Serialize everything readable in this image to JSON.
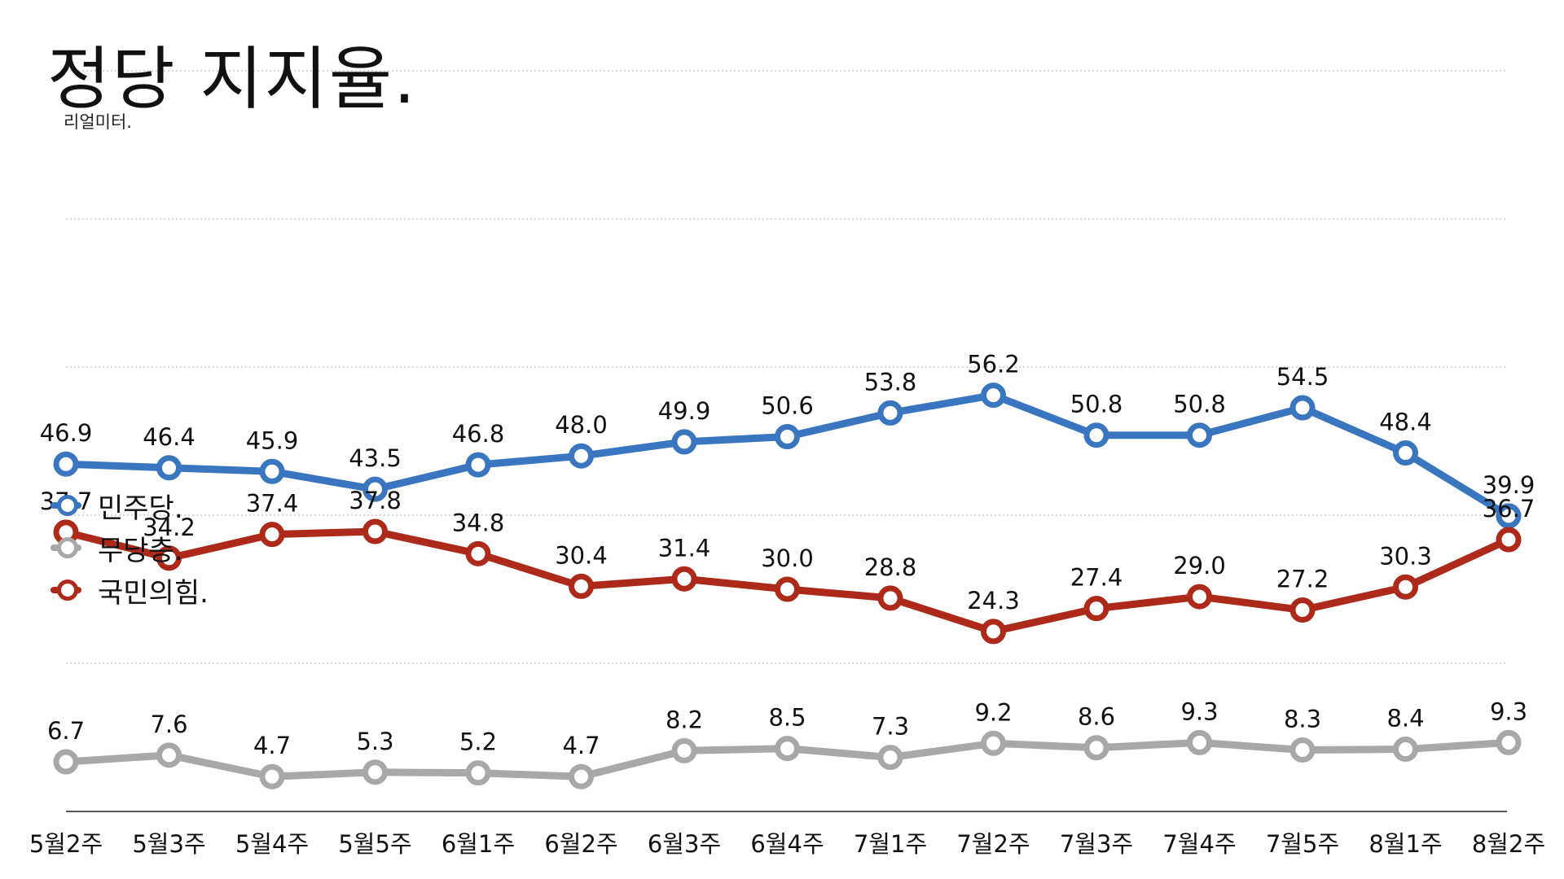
{
  "chart_data": {
    "type": "line",
    "title": "정당 지지율.",
    "subtitle": "리얼미터.",
    "categories": [
      "5월2주",
      "5월3주",
      "5월4주",
      "5월5주",
      "6월1주",
      "6월2주",
      "6월3주",
      "6월4주",
      "7월1주",
      "7월2주",
      "7월3주",
      "7월4주",
      "7월5주",
      "8월1주",
      "8월2주"
    ],
    "series": [
      {
        "name": "민주당.",
        "color": "#3a75bf",
        "values": [
          46.9,
          46.4,
          45.9,
          43.5,
          46.8,
          48.0,
          49.9,
          50.6,
          53.8,
          56.2,
          50.8,
          50.8,
          54.5,
          48.4,
          39.9
        ],
        "labels": [
          "46.9",
          "46.4",
          "45.9",
          "43.5",
          "46.8",
          "48.0",
          "49.9",
          "50.6",
          "53.8",
          "56.2",
          "50.8",
          "50.8",
          "54.5",
          "48.4",
          "39.9"
        ]
      },
      {
        "name": "무당층.",
        "color": "#a8a8a8",
        "values": [
          6.7,
          7.6,
          4.7,
          5.3,
          5.2,
          4.7,
          8.2,
          8.5,
          7.3,
          9.2,
          8.6,
          9.3,
          8.3,
          8.4,
          9.3
        ],
        "labels": [
          "6.7",
          "7.6",
          "4.7",
          "5.3",
          "5.2",
          "4.7",
          "8.2",
          "8.5",
          "7.3",
          "9.2",
          "8.6",
          "9.3",
          "8.3",
          "8.4",
          "9.3"
        ]
      },
      {
        "name": "국민의힘.",
        "color": "#ad2a1a",
        "values": [
          37.7,
          34.2,
          37.4,
          37.8,
          34.8,
          30.4,
          31.4,
          30.0,
          28.8,
          24.3,
          27.4,
          29.0,
          27.2,
          30.3,
          36.7
        ],
        "labels": [
          "37.7",
          "34.2",
          "37.4",
          "37.8",
          "34.8",
          "30.4",
          "31.4",
          "30.0",
          "28.8",
          "24.3",
          "27.4",
          "29.0",
          "27.2",
          "30.3",
          "36.7"
        ]
      }
    ],
    "ylim": [
      0,
      60
    ],
    "grid": true,
    "legend_position": "left",
    "xlabel": "",
    "ylabel": ""
  }
}
